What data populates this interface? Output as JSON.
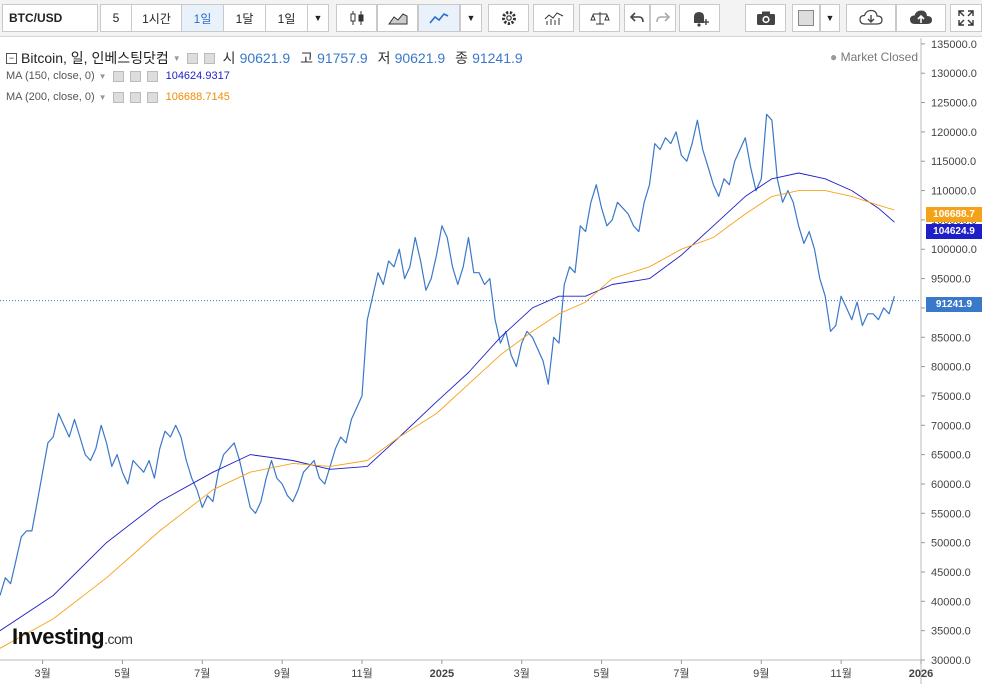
{
  "toolbar": {
    "symbol": "BTC/USD",
    "intervals": [
      "5",
      "1시간",
      "1일",
      "1달",
      "1일"
    ],
    "active_interval_index": 2,
    "icons": [
      "candles-icon",
      "area-chart-icon",
      "line-chart-icon",
      "dropdown-caret-icon",
      "settings-gear-icon",
      "indicators-icon",
      "compare-scale-icon",
      "undo-icon",
      "redo-icon",
      "alert-bell-icon",
      "camera-icon",
      "color-square-icon",
      "cloud-download-icon",
      "cloud-upload-icon",
      "fullscreen-icon"
    ]
  },
  "legend": {
    "title": "Bitcoin, 일, 인베스팅닷컴",
    "ohlc": [
      {
        "label": "시",
        "value": "90621.9"
      },
      {
        "label": "고",
        "value": "91757.9"
      },
      {
        "label": "저",
        "value": "90621.9"
      },
      {
        "label": "종",
        "value": "91241.9"
      }
    ],
    "ma150_label": "MA (150, close, 0)",
    "ma150_value": "104624.9317",
    "ma200_label": "MA (200, close, 0)",
    "ma200_value": "106688.7145",
    "market_status": "Market Closed"
  },
  "branding": {
    "name": "Investing",
    "suffix": ".com"
  },
  "price_tags": {
    "ma200": "106688.7",
    "ma150": "104624.9",
    "last": "91241.9"
  },
  "colors": {
    "price_line": "#3a78c9",
    "ma150": "#1f1fc8",
    "ma200": "#f5a21b",
    "last_tag": "#3a78c9"
  },
  "chart_data": {
    "type": "line",
    "series": [
      {
        "name": "Bitcoin",
        "points": [
          [
            0,
            41000
          ],
          [
            1,
            44000
          ],
          [
            2,
            43000
          ],
          [
            3,
            47000
          ],
          [
            4,
            51000
          ],
          [
            5,
            52000
          ],
          [
            6,
            52000
          ],
          [
            7,
            57000
          ],
          [
            8,
            62000
          ],
          [
            9,
            67000
          ],
          [
            10,
            68000
          ],
          [
            11,
            72000
          ],
          [
            12,
            70000
          ],
          [
            13,
            68000
          ],
          [
            14,
            71000
          ],
          [
            15,
            68000
          ],
          [
            16,
            65000
          ],
          [
            17,
            64000
          ],
          [
            18,
            66000
          ],
          [
            19,
            70000
          ],
          [
            20,
            67000
          ],
          [
            21,
            63000
          ],
          [
            22,
            65000
          ],
          [
            23,
            62000
          ],
          [
            24,
            60000
          ],
          [
            25,
            64000
          ],
          [
            26,
            63000
          ],
          [
            27,
            62000
          ],
          [
            28,
            64000
          ],
          [
            29,
            61000
          ],
          [
            30,
            66000
          ],
          [
            31,
            69000
          ],
          [
            32,
            68000
          ],
          [
            33,
            70000
          ],
          [
            34,
            68000
          ],
          [
            35,
            64000
          ],
          [
            36,
            61000
          ],
          [
            37,
            59000
          ],
          [
            38,
            56000
          ],
          [
            39,
            58000
          ],
          [
            40,
            57000
          ],
          [
            41,
            62000
          ],
          [
            42,
            65000
          ],
          [
            43,
            66000
          ],
          [
            44,
            67000
          ],
          [
            45,
            64000
          ],
          [
            46,
            60000
          ],
          [
            47,
            56000
          ],
          [
            48,
            55000
          ],
          [
            49,
            57000
          ],
          [
            50,
            61000
          ],
          [
            51,
            64000
          ],
          [
            52,
            61000
          ],
          [
            53,
            60000
          ],
          [
            54,
            58000
          ],
          [
            55,
            57000
          ],
          [
            56,
            59000
          ],
          [
            57,
            62000
          ],
          [
            58,
            63000
          ],
          [
            59,
            64000
          ],
          [
            60,
            61000
          ],
          [
            61,
            60000
          ],
          [
            62,
            63000
          ],
          [
            63,
            66000
          ],
          [
            64,
            68000
          ],
          [
            65,
            67000
          ],
          [
            66,
            71000
          ],
          [
            67,
            73000
          ],
          [
            68,
            75000
          ],
          [
            69,
            88000
          ],
          [
            70,
            92000
          ],
          [
            71,
            96000
          ],
          [
            72,
            94000
          ],
          [
            73,
            98000
          ],
          [
            74,
            97000
          ],
          [
            75,
            100000
          ],
          [
            76,
            95000
          ],
          [
            77,
            97000
          ],
          [
            78,
            102000
          ],
          [
            79,
            98000
          ],
          [
            80,
            93000
          ],
          [
            81,
            95000
          ],
          [
            82,
            99000
          ],
          [
            83,
            104000
          ],
          [
            84,
            102000
          ],
          [
            85,
            97000
          ],
          [
            86,
            94000
          ],
          [
            87,
            97000
          ],
          [
            88,
            102000
          ],
          [
            89,
            96000
          ],
          [
            90,
            96000
          ],
          [
            91,
            94000
          ],
          [
            92,
            95000
          ],
          [
            93,
            88000
          ],
          [
            94,
            84000
          ],
          [
            95,
            86000
          ],
          [
            96,
            82000
          ],
          [
            97,
            80000
          ],
          [
            98,
            84000
          ],
          [
            99,
            86000
          ],
          [
            100,
            85000
          ],
          [
            101,
            83000
          ],
          [
            102,
            81000
          ],
          [
            103,
            77000
          ],
          [
            104,
            85000
          ],
          [
            105,
            84000
          ],
          [
            106,
            94000
          ],
          [
            107,
            97000
          ],
          [
            108,
            96000
          ],
          [
            109,
            104000
          ],
          [
            110,
            103000
          ],
          [
            111,
            108000
          ],
          [
            112,
            111000
          ],
          [
            113,
            107000
          ],
          [
            114,
            104000
          ],
          [
            115,
            105000
          ],
          [
            116,
            108000
          ],
          [
            117,
            107000
          ],
          [
            118,
            106000
          ],
          [
            119,
            104000
          ],
          [
            120,
            103000
          ],
          [
            121,
            108000
          ],
          [
            122,
            111000
          ],
          [
            123,
            118000
          ],
          [
            124,
            117000
          ],
          [
            125,
            119000
          ],
          [
            126,
            118000
          ],
          [
            127,
            120000
          ],
          [
            128,
            116000
          ],
          [
            129,
            115000
          ],
          [
            130,
            118000
          ],
          [
            131,
            122000
          ],
          [
            132,
            117000
          ],
          [
            133,
            114000
          ],
          [
            134,
            111000
          ],
          [
            135,
            109000
          ],
          [
            136,
            112000
          ],
          [
            137,
            111000
          ],
          [
            138,
            115000
          ],
          [
            139,
            117000
          ],
          [
            140,
            119000
          ],
          [
            141,
            114000
          ],
          [
            142,
            110000
          ],
          [
            143,
            112000
          ],
          [
            144,
            123000
          ],
          [
            145,
            122000
          ],
          [
            146,
            112000
          ],
          [
            147,
            108000
          ],
          [
            148,
            110000
          ],
          [
            149,
            108000
          ],
          [
            150,
            104000
          ],
          [
            151,
            101000
          ],
          [
            152,
            103000
          ],
          [
            153,
            100000
          ],
          [
            154,
            95000
          ],
          [
            155,
            92000
          ],
          [
            156,
            86000
          ],
          [
            157,
            87000
          ],
          [
            158,
            92000
          ],
          [
            159,
            90000
          ],
          [
            160,
            88000
          ],
          [
            161,
            91000
          ],
          [
            162,
            87000
          ],
          [
            163,
            89000
          ],
          [
            164,
            89000
          ],
          [
            165,
            88000
          ],
          [
            166,
            90000
          ],
          [
            167,
            89000
          ],
          [
            168,
            92000
          ]
        ]
      },
      {
        "name": "MA (150, close, 0)",
        "points": [
          [
            0,
            35000
          ],
          [
            10,
            41000
          ],
          [
            20,
            50000
          ],
          [
            30,
            57000
          ],
          [
            40,
            62000
          ],
          [
            47,
            65000
          ],
          [
            55,
            64000
          ],
          [
            62,
            62500
          ],
          [
            69,
            63000
          ],
          [
            75,
            68000
          ],
          [
            82,
            74000
          ],
          [
            88,
            79000
          ],
          [
            94,
            85000
          ],
          [
            100,
            90000
          ],
          [
            105,
            92000
          ],
          [
            110,
            92000
          ],
          [
            115,
            94000
          ],
          [
            122,
            95000
          ],
          [
            128,
            99000
          ],
          [
            134,
            104000
          ],
          [
            140,
            109000
          ],
          [
            145,
            112000
          ],
          [
            150,
            113000
          ],
          [
            155,
            112000
          ],
          [
            160,
            110000
          ],
          [
            165,
            107000
          ],
          [
            168,
            104624.9
          ]
        ]
      },
      {
        "name": "MA (200, close, 0)",
        "points": [
          [
            0,
            32000
          ],
          [
            10,
            37000
          ],
          [
            20,
            44000
          ],
          [
            30,
            52000
          ],
          [
            40,
            59000
          ],
          [
            47,
            62000
          ],
          [
            55,
            63500
          ],
          [
            62,
            63000
          ],
          [
            69,
            64000
          ],
          [
            75,
            68000
          ],
          [
            82,
            72000
          ],
          [
            88,
            77000
          ],
          [
            94,
            82000
          ],
          [
            100,
            86000
          ],
          [
            105,
            89000
          ],
          [
            110,
            91000
          ],
          [
            115,
            95000
          ],
          [
            122,
            97000
          ],
          [
            128,
            100000
          ],
          [
            134,
            102000
          ],
          [
            140,
            106000
          ],
          [
            145,
            109000
          ],
          [
            150,
            110000
          ],
          [
            155,
            110000
          ],
          [
            160,
            109000
          ],
          [
            165,
            107500
          ],
          [
            168,
            106688.7
          ]
        ]
      }
    ],
    "x_ticks": [
      {
        "x": 8,
        "label": "3월"
      },
      {
        "x": 23,
        "label": "5월"
      },
      {
        "x": 38,
        "label": "7월"
      },
      {
        "x": 53,
        "label": "9월"
      },
      {
        "x": 68,
        "label": "11월"
      },
      {
        "x": 83,
        "label": "2025"
      },
      {
        "x": 98,
        "label": "3월"
      },
      {
        "x": 113,
        "label": "5월"
      },
      {
        "x": 128,
        "label": "7월"
      },
      {
        "x": 143,
        "label": "9월"
      },
      {
        "x": 158,
        "label": "11월"
      },
      {
        "x": 173,
        "label": "2026"
      }
    ],
    "xlim": [
      0,
      173
    ],
    "ylim": [
      30000,
      136000
    ],
    "y_ticks": [
      30000,
      35000,
      40000,
      45000,
      50000,
      55000,
      60000,
      65000,
      70000,
      75000,
      80000,
      85000,
      90000,
      95000,
      100000,
      105000,
      110000,
      115000,
      120000,
      125000,
      130000,
      135000
    ],
    "last_value": 91241.9,
    "y_axis_position": "right",
    "grid": false
  }
}
